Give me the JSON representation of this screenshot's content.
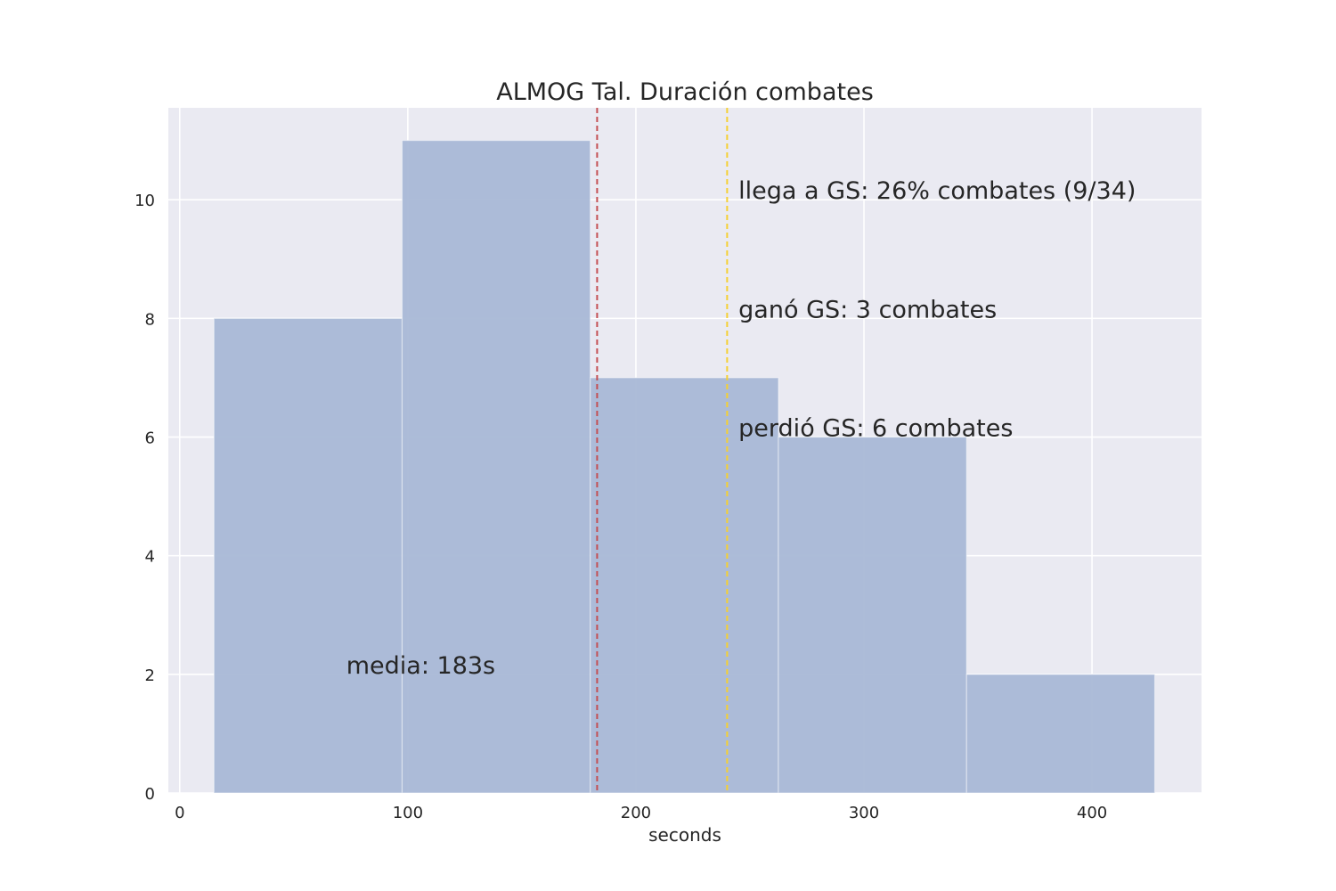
{
  "chart_data": {
    "type": "bar",
    "title": "ALMOG Tal. Duración combates",
    "xlabel": "seconds",
    "ylabel": "",
    "xlim": [
      -5,
      448
    ],
    "ylim": [
      0,
      11.55
    ],
    "xticks": [
      0,
      100,
      200,
      300,
      400
    ],
    "yticks": [
      0,
      2,
      4,
      6,
      8,
      10
    ],
    "grid": true,
    "bins": [
      {
        "x0": 15,
        "x1": 97.5,
        "count": 8
      },
      {
        "x0": 97.5,
        "x1": 180,
        "count": 11
      },
      {
        "x0": 180,
        "x1": 262.5,
        "count": 7
      },
      {
        "x0": 262.5,
        "x1": 345,
        "count": 6
      },
      {
        "x0": 345,
        "x1": 427.5,
        "count": 2
      }
    ],
    "reference_lines": [
      {
        "name": "media",
        "x": 183,
        "color": "#c44e52"
      },
      {
        "name": "gs",
        "x": 240,
        "color": "#f5d033"
      }
    ],
    "annotations": [
      {
        "text": "media: 183s",
        "x": 73,
        "y": 2.0,
        "color": "#c44e52"
      },
      {
        "text": "llega a GS: 26% combates (9/34)",
        "x": 245,
        "y": 10.0,
        "color": "#262626"
      },
      {
        "text": "ganó GS: 3 combates",
        "x": 245,
        "y": 8.0,
        "color": "#262626"
      },
      {
        "text": "perdió GS: 6 combates",
        "x": 245,
        "y": 6.0,
        "color": "#262626"
      }
    ],
    "colors": {
      "bar": "#a9b8d6",
      "plot_bg": "#eaeaf2",
      "grid": "#ffffff"
    }
  }
}
